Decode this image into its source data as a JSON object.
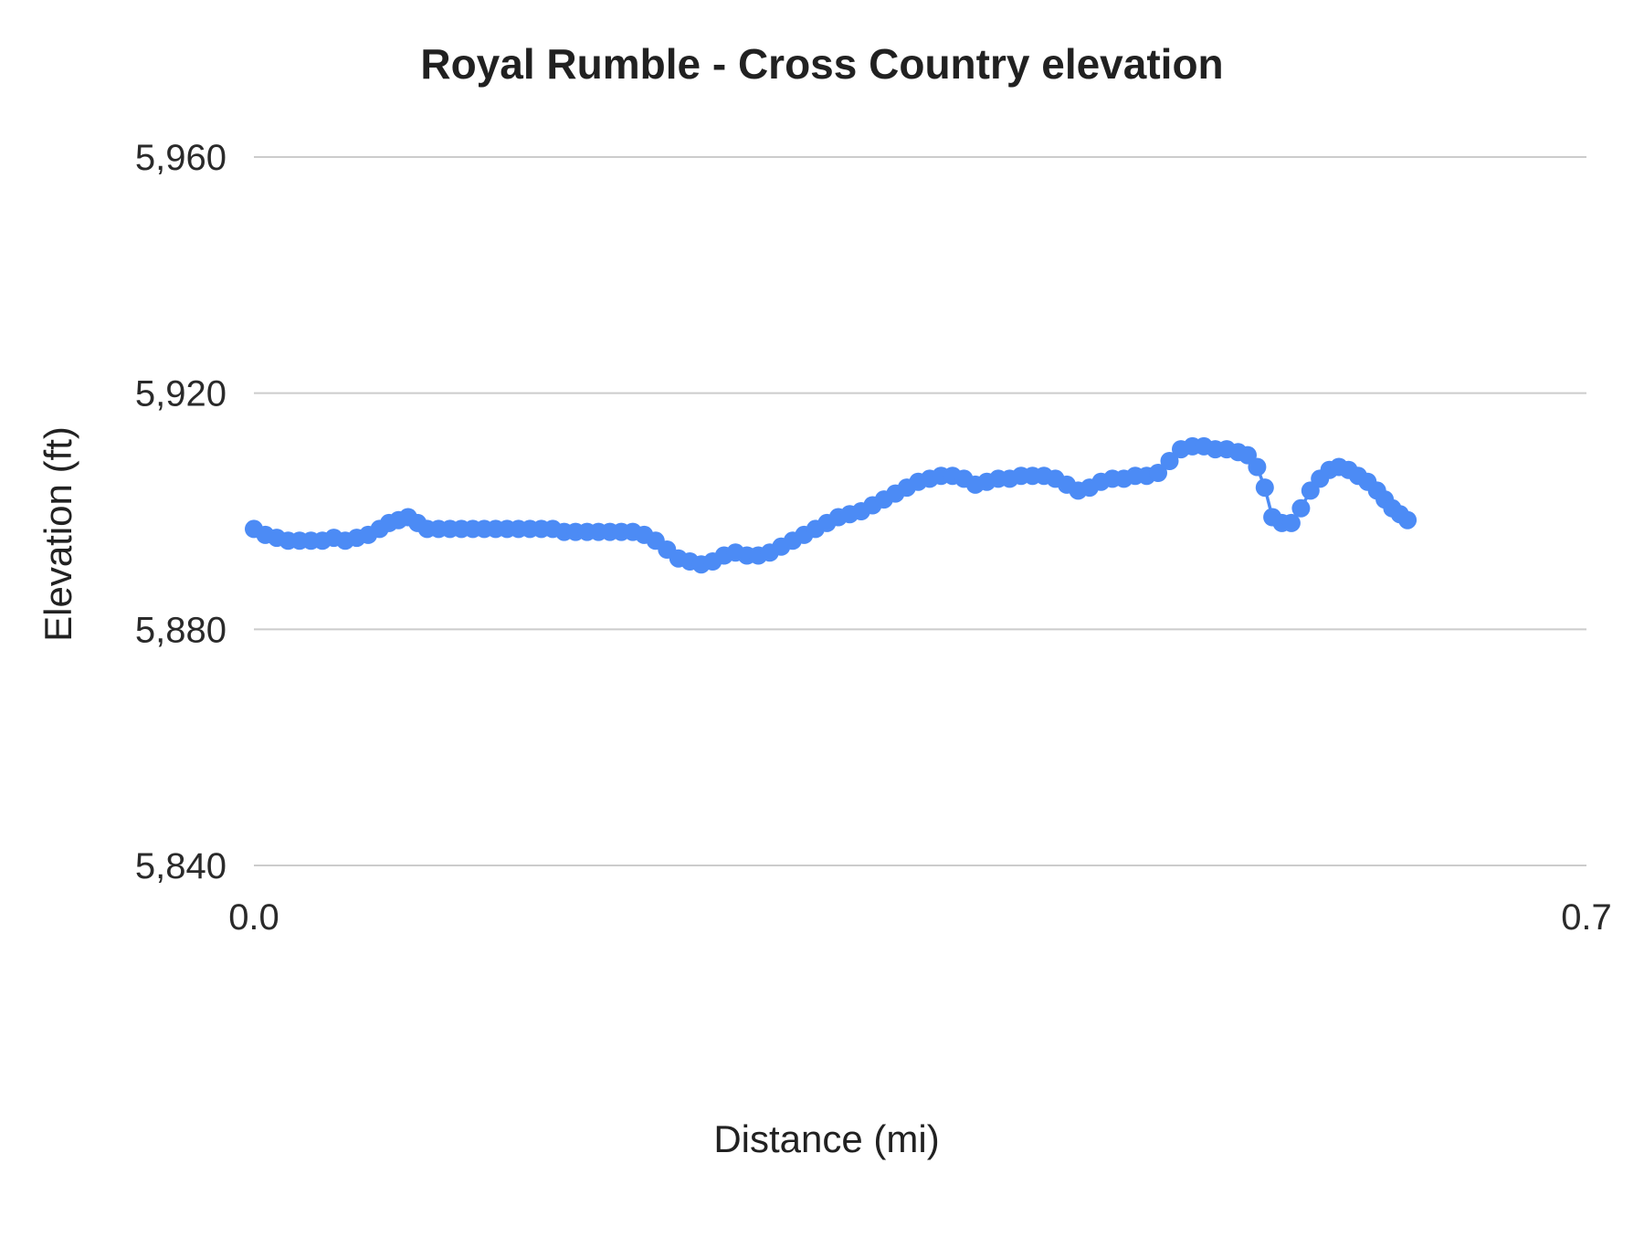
{
  "chart_data": {
    "type": "line",
    "title": "Royal Rumble - Cross Country elevation",
    "xlabel": "Distance (mi)",
    "ylabel": "Elevation (ft)",
    "xlim": [
      0,
      0.7
    ],
    "ylim": [
      5840,
      5960
    ],
    "grid": true,
    "legend": "none",
    "gridline_color": "#cccccc",
    "text_color": "#212121",
    "x_ticks": [
      {
        "value": 0.0,
        "label": "0.0"
      },
      {
        "value": 0.7,
        "label": "0.7"
      }
    ],
    "y_ticks": [
      {
        "value": 5960,
        "label": "5,960"
      },
      {
        "value": 5920,
        "label": "5,920"
      },
      {
        "value": 5880,
        "label": "5,880"
      },
      {
        "value": 5840,
        "label": "5,840"
      }
    ],
    "series": [
      {
        "name": "Elevation",
        "color": "#4c8bf5",
        "marker": "circle",
        "points": [
          [
            0.0,
            5897
          ],
          [
            0.006,
            5896
          ],
          [
            0.012,
            5895.5
          ],
          [
            0.018,
            5895
          ],
          [
            0.024,
            5895
          ],
          [
            0.03,
            5895
          ],
          [
            0.036,
            5895
          ],
          [
            0.042,
            5895.5
          ],
          [
            0.048,
            5895
          ],
          [
            0.054,
            5895.5
          ],
          [
            0.06,
            5896
          ],
          [
            0.066,
            5897
          ],
          [
            0.071,
            5898
          ],
          [
            0.076,
            5898.5
          ],
          [
            0.081,
            5899
          ],
          [
            0.086,
            5898
          ],
          [
            0.091,
            5897
          ],
          [
            0.097,
            5897
          ],
          [
            0.103,
            5897
          ],
          [
            0.109,
            5897
          ],
          [
            0.115,
            5897
          ],
          [
            0.121,
            5897
          ],
          [
            0.127,
            5897
          ],
          [
            0.133,
            5897
          ],
          [
            0.139,
            5897
          ],
          [
            0.145,
            5897
          ],
          [
            0.151,
            5897
          ],
          [
            0.157,
            5897
          ],
          [
            0.163,
            5896.5
          ],
          [
            0.169,
            5896.5
          ],
          [
            0.175,
            5896.5
          ],
          [
            0.181,
            5896.5
          ],
          [
            0.187,
            5896.5
          ],
          [
            0.193,
            5896.5
          ],
          [
            0.199,
            5896.5
          ],
          [
            0.205,
            5896
          ],
          [
            0.211,
            5895
          ],
          [
            0.217,
            5893.5
          ],
          [
            0.223,
            5892
          ],
          [
            0.229,
            5891.5
          ],
          [
            0.235,
            5891
          ],
          [
            0.241,
            5891.5
          ],
          [
            0.247,
            5892.5
          ],
          [
            0.253,
            5893
          ],
          [
            0.259,
            5892.5
          ],
          [
            0.265,
            5892.5
          ],
          [
            0.271,
            5893
          ],
          [
            0.277,
            5894
          ],
          [
            0.283,
            5895
          ],
          [
            0.289,
            5896
          ],
          [
            0.295,
            5897
          ],
          [
            0.301,
            5898
          ],
          [
            0.307,
            5899
          ],
          [
            0.313,
            5899.5
          ],
          [
            0.319,
            5900
          ],
          [
            0.325,
            5901
          ],
          [
            0.331,
            5902
          ],
          [
            0.337,
            5903
          ],
          [
            0.343,
            5904
          ],
          [
            0.349,
            5905
          ],
          [
            0.355,
            5905.5
          ],
          [
            0.361,
            5906
          ],
          [
            0.367,
            5906
          ],
          [
            0.373,
            5905.5
          ],
          [
            0.379,
            5904.5
          ],
          [
            0.385,
            5905
          ],
          [
            0.391,
            5905.5
          ],
          [
            0.397,
            5905.5
          ],
          [
            0.403,
            5906
          ],
          [
            0.409,
            5906
          ],
          [
            0.415,
            5906
          ],
          [
            0.421,
            5905.5
          ],
          [
            0.427,
            5904.5
          ],
          [
            0.433,
            5903.5
          ],
          [
            0.439,
            5904
          ],
          [
            0.445,
            5905
          ],
          [
            0.451,
            5905.5
          ],
          [
            0.457,
            5905.5
          ],
          [
            0.463,
            5906
          ],
          [
            0.469,
            5906
          ],
          [
            0.475,
            5906.5
          ],
          [
            0.481,
            5908.5
          ],
          [
            0.487,
            5910.5
          ],
          [
            0.493,
            5911
          ],
          [
            0.499,
            5911
          ],
          [
            0.505,
            5910.5
          ],
          [
            0.511,
            5910.5
          ],
          [
            0.517,
            5910
          ],
          [
            0.522,
            5909.5
          ],
          [
            0.527,
            5907.5
          ],
          [
            0.531,
            5904
          ],
          [
            0.535,
            5899
          ],
          [
            0.54,
            5898
          ],
          [
            0.545,
            5898
          ],
          [
            0.55,
            5900.5
          ],
          [
            0.555,
            5903.5
          ],
          [
            0.56,
            5905.5
          ],
          [
            0.565,
            5907
          ],
          [
            0.57,
            5907.5
          ],
          [
            0.575,
            5907
          ],
          [
            0.58,
            5906
          ],
          [
            0.585,
            5905
          ],
          [
            0.59,
            5903.5
          ],
          [
            0.594,
            5902
          ],
          [
            0.598,
            5900.5
          ],
          [
            0.602,
            5899.5
          ],
          [
            0.606,
            5898.5
          ]
        ]
      }
    ]
  }
}
